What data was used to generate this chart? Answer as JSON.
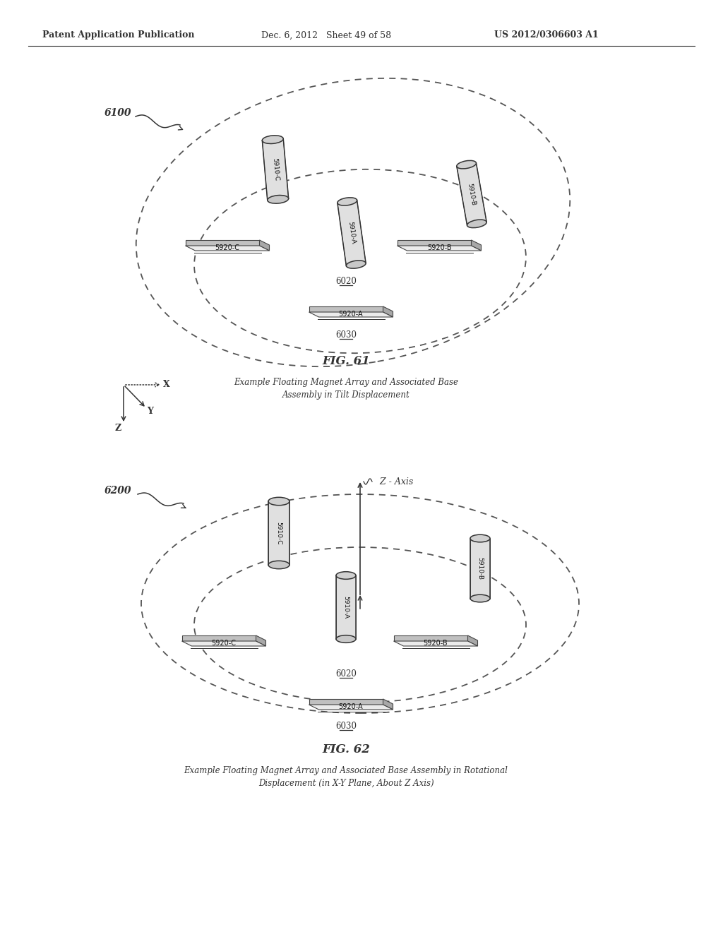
{
  "header_left": "Patent Application Publication",
  "header_mid": "Dec. 6, 2012   Sheet 49 of 58",
  "header_right": "US 2012/0306603 A1",
  "fig1_label": "6100",
  "fig1_title": "FIG. 61",
  "fig1_caption": "Example Floating Magnet Array and Associated Base\nAssembly in Tilt Displacement",
  "fig2_label": "6200",
  "fig2_title": "FIG. 62",
  "fig2_caption": "Example Floating Magnet Array and Associated Base Assembly in Rotational\nDisplacement (in X-Y Plane, About Z Axis)",
  "bg_color": "#ffffff",
  "line_color": "#333333"
}
